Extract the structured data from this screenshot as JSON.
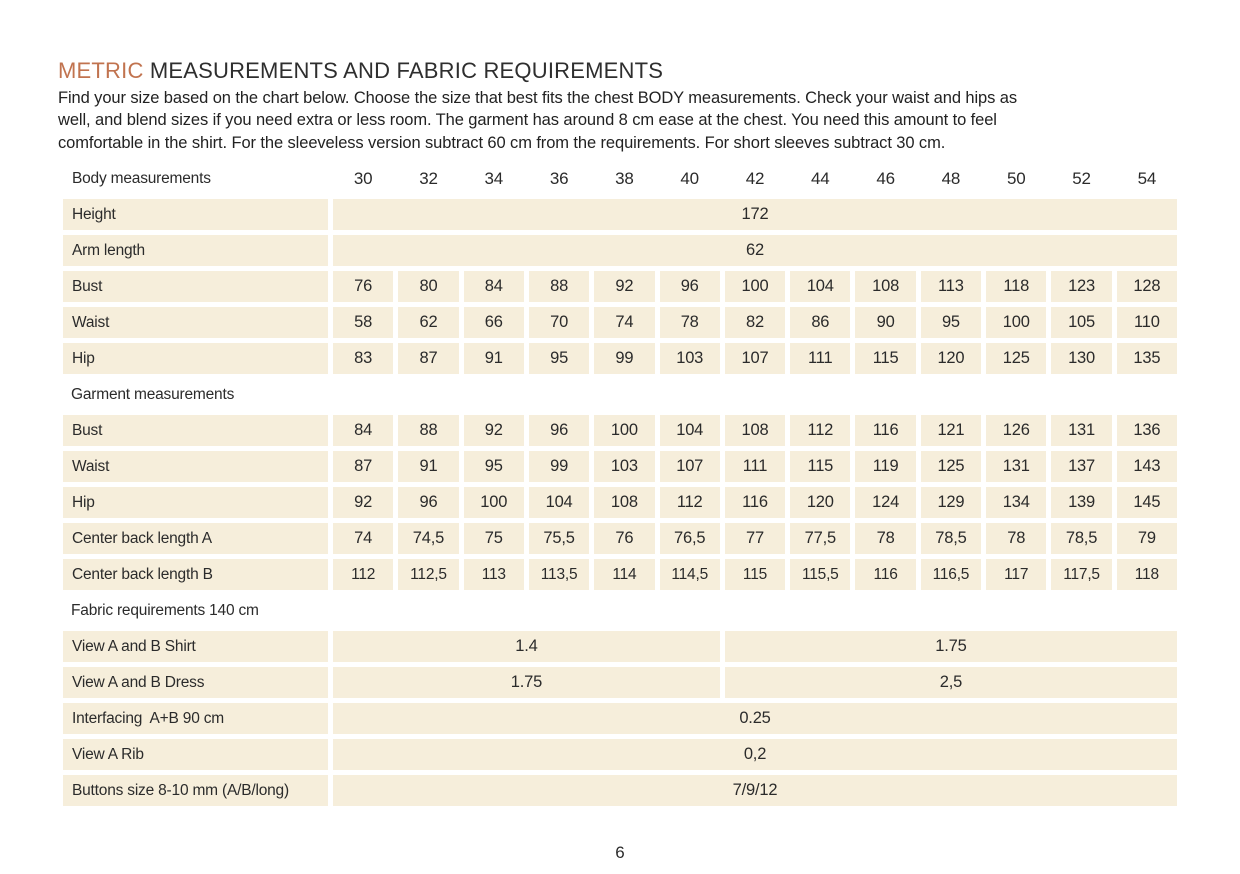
{
  "page": {
    "title": {
      "accent": "METRIC",
      "rest": " MEASUREMENTS AND FABRIC REQUIREMENTS"
    },
    "intro_lines": [
      "Find your size based on the chart below. Choose the size that best fits the chest BODY measurements.  Check your waist and hips as",
      "well, and blend sizes if you need extra or less room. The garment has around 8 cm ease at the chest. You need this amount to feel",
      "comfortable in the shirt. For the sleeveless version subtract 60 cm from the requirements. For short sleeves subtract 30 cm."
    ],
    "page_number": "6",
    "colors": {
      "accent": "#c1734f",
      "cell_bg": "#f6eedb",
      "text": "#2b2b2b"
    }
  },
  "table": {
    "header_label": "Body measurements",
    "sizes": [
      "30",
      "32",
      "34",
      "36",
      "38",
      "40",
      "42",
      "44",
      "46",
      "48",
      "50",
      "52",
      "54"
    ],
    "rows": [
      {
        "type": "full",
        "label": "Height",
        "value": "172"
      },
      {
        "type": "full",
        "label": "Arm length",
        "value": "62"
      },
      {
        "type": "cells",
        "label": "Bust",
        "values": [
          "76",
          "80",
          "84",
          "88",
          "92",
          "96",
          "100",
          "104",
          "108",
          "113",
          "118",
          "123",
          "128"
        ]
      },
      {
        "type": "cells",
        "label": "Waist",
        "values": [
          "58",
          "62",
          "66",
          "70",
          "74",
          "78",
          "82",
          "86",
          "90",
          "95",
          "100",
          "105",
          "110"
        ]
      },
      {
        "type": "cells",
        "label": "Hip",
        "values": [
          "83",
          "87",
          "91",
          "95",
          "99",
          "103",
          "107",
          "111",
          "115",
          "120",
          "125",
          "130",
          "135"
        ]
      },
      {
        "type": "section",
        "label": "Garment measurements"
      },
      {
        "type": "cells",
        "label": "Bust",
        "values": [
          "84",
          "88",
          "92",
          "96",
          "100",
          "104",
          "108",
          "112",
          "116",
          "121",
          "126",
          "131",
          "136"
        ]
      },
      {
        "type": "cells",
        "label": "Waist",
        "values": [
          "87",
          "91",
          "95",
          "99",
          "103",
          "107",
          "111",
          "115",
          "119",
          "125",
          "131",
          "137",
          "143"
        ]
      },
      {
        "type": "cells",
        "label": "Hip",
        "values": [
          "92",
          "96",
          "100",
          "104",
          "108",
          "112",
          "116",
          "120",
          "124",
          "129",
          "134",
          "139",
          "145"
        ]
      },
      {
        "type": "cells",
        "label": "Center back length A",
        "values": [
          "74",
          "74,5",
          "75",
          "75,5",
          "76",
          "76,5",
          "77",
          "77,5",
          "78",
          "78,5",
          "78",
          "78,5",
          "79"
        ]
      },
      {
        "type": "cells",
        "label": "Center back length B",
        "values": [
          "112",
          "112,5",
          "113",
          "113,5",
          "114",
          "114,5",
          "115",
          "115,5",
          "116",
          "116,5",
          "117",
          "117,5",
          "118"
        ]
      },
      {
        "type": "section",
        "label": "Fabric requirements 140 cm"
      },
      {
        "type": "split",
        "label": "View A and B Shirt",
        "left": "1.4",
        "right": "1.75"
      },
      {
        "type": "split",
        "label": "View A and B Dress",
        "left": "1.75",
        "right": "2,5"
      },
      {
        "type": "full",
        "label": "Interfacing  A+B 90 cm",
        "value": "0.25"
      },
      {
        "type": "full",
        "label": "View A Rib",
        "value": "0,2"
      },
      {
        "type": "full",
        "label": "Buttons size 8-10 mm (A/B/long)",
        "value": "7/9/12"
      }
    ]
  }
}
